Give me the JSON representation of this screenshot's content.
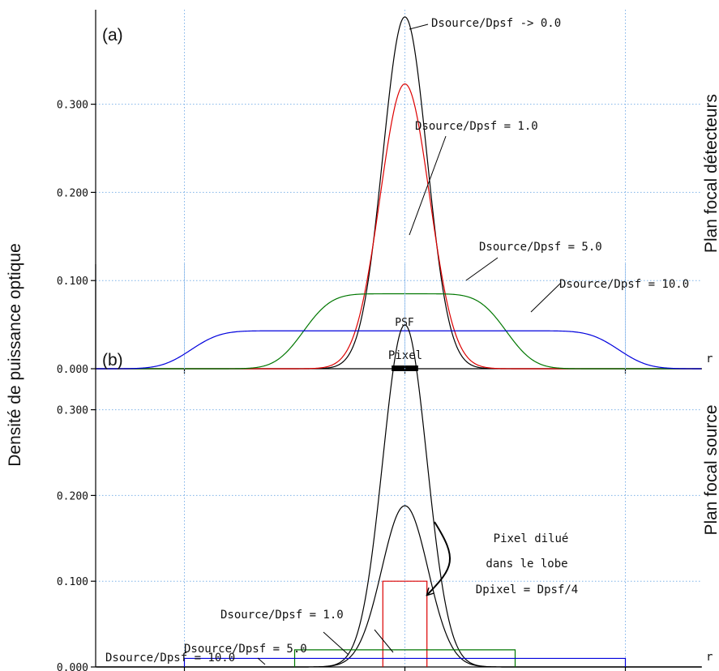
{
  "y_axis_title": "Densité de puissance optique",
  "chart_data": [
    {
      "id": "a",
      "type": "line",
      "panel_label": "(a)",
      "side_label": "Plan focal détecteurs",
      "axis_end_label": "r",
      "yticks": [
        "0.000",
        "0.100",
        "0.200",
        "0.300"
      ],
      "ylim": [
        0,
        0.4
      ],
      "xlim": [
        -14,
        14
      ],
      "grid": true,
      "series": [
        {
          "name": "Dsource/Dpsf -> 0.0",
          "color": "#000000",
          "kind": "gaussian",
          "peak": 0.399,
          "sigma": 1.0,
          "halfwidth": 0
        },
        {
          "name": "Dsource/Dpsf = 1.0",
          "color": "#dd0000",
          "kind": "gaussian",
          "peak": 0.323,
          "sigma": 1.12,
          "halfwidth": 0
        },
        {
          "name": "Dsource/Dpsf = 5.0",
          "color": "#007700",
          "kind": "plateau",
          "peak": 0.085,
          "sigma": 1.0,
          "halfwidth": 4.6
        },
        {
          "name": "Dsource/Dpsf = 10.0",
          "color": "#0000dd",
          "kind": "plateau",
          "peak": 0.043,
          "sigma": 1.05,
          "halfwidth": 9.7
        }
      ],
      "pixel_label": "Pixel",
      "pixel_halfwidth": 0.6
    },
    {
      "id": "b",
      "type": "line",
      "panel_label": "(b)",
      "side_label": "Plan focal source",
      "axis_end_label": "r",
      "top_label": "PSF",
      "yticks": [
        "0.000",
        "0.100",
        "0.200",
        "0.300"
      ],
      "ylim": [
        0,
        0.4
      ],
      "xlim": [
        -14,
        14
      ],
      "grid": true,
      "series": [
        {
          "name": "PSF",
          "color": "#000000",
          "kind": "gaussian",
          "peak": 0.399,
          "sigma": 1.0,
          "halfwidth": 0
        },
        {
          "name": "Pixel dilué dans le lobe",
          "color": "#000000",
          "kind": "gaussian",
          "peak": 0.188,
          "sigma": 1.05,
          "halfwidth": 0
        },
        {
          "name": "Dsource/Dpsf = 1.0",
          "color": "#dd0000",
          "kind": "rect",
          "peak": 0.1,
          "halfwidth": 1.0
        },
        {
          "name": "Dsource/Dpsf = 5.0",
          "color": "#007700",
          "kind": "rect",
          "peak": 0.02,
          "halfwidth": 5.0
        },
        {
          "name": "Dsource/Dpsf = 10.0",
          "color": "#0000dd",
          "kind": "rect",
          "peak": 0.01,
          "halfwidth": 10.0
        }
      ],
      "annotation_lines": [
        "Pixel dilué",
        "dans le lobe",
        "Dpixel = Dpsf/4"
      ]
    }
  ]
}
